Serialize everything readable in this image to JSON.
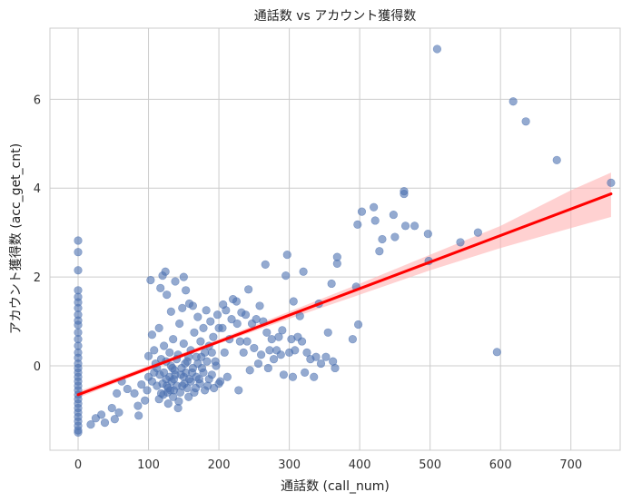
{
  "chart_data": {
    "type": "scatter",
    "title": "通話数 vs アカウント獲得数",
    "xlabel": "通話数 (call_num)",
    "ylabel": "アカウント獲得数 (acc_get_cnt)",
    "xlim": [
      -40,
      770
    ],
    "ylim": [
      -1.9,
      7.6
    ],
    "xticks": [
      0,
      100,
      200,
      300,
      400,
      500,
      600,
      700
    ],
    "yticks": [
      0,
      2,
      4,
      6
    ],
    "xtick_labels": [
      "0",
      "100",
      "200",
      "300",
      "400",
      "500",
      "600",
      "700"
    ],
    "ytick_labels": [
      "0",
      "2",
      "4",
      "6"
    ],
    "grid": true,
    "colors": {
      "points": "#4c72b0",
      "regression_line": "#ff0000",
      "confidence_band": "#ffb3b3",
      "grid": "#cccccc"
    },
    "regression": {
      "line": [
        [
          0,
          -0.65
        ],
        [
          757,
          3.87
        ]
      ],
      "ci": [
        {
          "x": 0,
          "lo": -0.72,
          "hi": -0.58
        },
        {
          "x": 100,
          "lo": -0.1,
          "hi": 0.0
        },
        {
          "x": 200,
          "lo": 0.5,
          "hi": 0.6
        },
        {
          "x": 300,
          "lo": 1.06,
          "hi": 1.22
        },
        {
          "x": 400,
          "lo": 1.6,
          "hi": 1.85
        },
        {
          "x": 500,
          "lo": 2.15,
          "hi": 2.5
        },
        {
          "x": 600,
          "lo": 2.65,
          "hi": 3.15
        },
        {
          "x": 700,
          "lo": 3.1,
          "hi": 3.95
        },
        {
          "x": 757,
          "lo": 3.35,
          "hi": 4.35
        }
      ]
    },
    "points": [
      {
        "x": 0,
        "y": 2.82
      },
      {
        "x": 0,
        "y": 2.56
      },
      {
        "x": 0,
        "y": 2.15
      },
      {
        "x": 0,
        "y": 1.7
      },
      {
        "x": 0,
        "y": 1.55
      },
      {
        "x": 0,
        "y": 1.43
      },
      {
        "x": 0,
        "y": 1.3
      },
      {
        "x": 0,
        "y": 1.15
      },
      {
        "x": 0,
        "y": 1.02
      },
      {
        "x": 0,
        "y": 0.92
      },
      {
        "x": 0,
        "y": 0.75
      },
      {
        "x": 0,
        "y": 0.6
      },
      {
        "x": 0,
        "y": 0.45
      },
      {
        "x": 0,
        "y": 0.3
      },
      {
        "x": 0,
        "y": 0.18
      },
      {
        "x": 0,
        "y": 0.05
      },
      {
        "x": 0,
        "y": -0.05
      },
      {
        "x": 0,
        "y": -0.15
      },
      {
        "x": 0,
        "y": -0.25
      },
      {
        "x": 0,
        "y": -0.35
      },
      {
        "x": 0,
        "y": -0.45
      },
      {
        "x": 0,
        "y": -0.55
      },
      {
        "x": 0,
        "y": -0.65
      },
      {
        "x": 0,
        "y": -0.75
      },
      {
        "x": 0,
        "y": -0.85
      },
      {
        "x": 0,
        "y": -0.95
      },
      {
        "x": 0,
        "y": -1.05
      },
      {
        "x": 0,
        "y": -1.15
      },
      {
        "x": 0,
        "y": -1.25
      },
      {
        "x": 0,
        "y": -1.35
      },
      {
        "x": 0,
        "y": -1.45
      },
      {
        "x": 0,
        "y": -1.5
      },
      {
        "x": 18,
        "y": -1.32
      },
      {
        "x": 25,
        "y": -1.18
      },
      {
        "x": 33,
        "y": -1.1
      },
      {
        "x": 38,
        "y": -1.28
      },
      {
        "x": 48,
        "y": -0.95
      },
      {
        "x": 52,
        "y": -1.2
      },
      {
        "x": 58,
        "y": -1.05
      },
      {
        "x": 55,
        "y": -0.62
      },
      {
        "x": 62,
        "y": -0.35
      },
      {
        "x": 70,
        "y": -0.52
      },
      {
        "x": 80,
        "y": -0.62
      },
      {
        "x": 85,
        "y": -0.9
      },
      {
        "x": 86,
        "y": -1.12
      },
      {
        "x": 90,
        "y": -0.42
      },
      {
        "x": 95,
        "y": -0.78
      },
      {
        "x": 98,
        "y": -0.55
      },
      {
        "x": 100,
        "y": 0.22
      },
      {
        "x": 100,
        "y": -0.25
      },
      {
        "x": 103,
        "y": 1.93
      },
      {
        "x": 105,
        "y": 0.7
      },
      {
        "x": 108,
        "y": -0.15
      },
      {
        "x": 110,
        "y": 0.05
      },
      {
        "x": 112,
        "y": -0.45
      },
      {
        "x": 115,
        "y": 0.85
      },
      {
        "x": 117,
        "y": 1.75
      },
      {
        "x": 118,
        "y": -0.62
      },
      {
        "x": 120,
        "y": 2.03
      },
      {
        "x": 122,
        "y": 0.45
      },
      {
        "x": 124,
        "y": 2.12
      },
      {
        "x": 125,
        "y": -0.3
      },
      {
        "x": 126,
        "y": 1.6
      },
      {
        "x": 128,
        "y": -0.85
      },
      {
        "x": 130,
        "y": 0.3
      },
      {
        "x": 132,
        "y": 1.22
      },
      {
        "x": 134,
        "y": -0.05
      },
      {
        "x": 135,
        "y": 0.6
      },
      {
        "x": 136,
        "y": -0.55
      },
      {
        "x": 138,
        "y": 1.9
      },
      {
        "x": 140,
        "y": 0.15
      },
      {
        "x": 142,
        "y": -0.95
      },
      {
        "x": 144,
        "y": 0.95
      },
      {
        "x": 146,
        "y": -0.2
      },
      {
        "x": 148,
        "y": 1.3
      },
      {
        "x": 150,
        "y": 2.0
      },
      {
        "x": 150,
        "y": 0.5
      },
      {
        "x": 151,
        "y": -0.4
      },
      {
        "x": 153,
        "y": 1.7
      },
      {
        "x": 155,
        "y": 0.1
      },
      {
        "x": 157,
        "y": -0.7
      },
      {
        "x": 158,
        "y": 1.4
      },
      {
        "x": 160,
        "y": 0.35
      },
      {
        "x": 162,
        "y": -0.15
      },
      {
        "x": 163,
        "y": 1.35
      },
      {
        "x": 165,
        "y": 0.75
      },
      {
        "x": 167,
        "y": -0.5
      },
      {
        "x": 168,
        "y": 0.2
      },
      {
        "x": 170,
        "y": 1.1
      },
      {
        "x": 172,
        "y": -0.3
      },
      {
        "x": 174,
        "y": 0.55
      },
      {
        "x": 176,
        "y": -0.05
      },
      {
        "x": 178,
        "y": 0.85
      },
      {
        "x": 180,
        "y": 0.3
      },
      {
        "x": 182,
        "y": 1.25
      },
      {
        "x": 184,
        "y": -0.45
      },
      {
        "x": 186,
        "y": 0.45
      },
      {
        "x": 188,
        "y": 1.0
      },
      {
        "x": 190,
        "y": -0.2
      },
      {
        "x": 192,
        "y": 0.65
      },
      {
        "x": 195,
        "y": 0.1
      },
      {
        "x": 198,
        "y": 1.15
      },
      {
        "x": 200,
        "y": 0.85
      },
      {
        "x": 202,
        "y": -0.35
      },
      {
        "x": 205,
        "y": 0.85
      },
      {
        "x": 206,
        "y": 1.38
      },
      {
        "x": 208,
        "y": 0.3
      },
      {
        "x": 210,
        "y": 1.25
      },
      {
        "x": 212,
        "y": -0.25
      },
      {
        "x": 215,
        "y": 0.6
      },
      {
        "x": 218,
        "y": 1.05
      },
      {
        "x": 220,
        "y": 1.5
      },
      {
        "x": 225,
        "y": 1.45
      },
      {
        "x": 226,
        "y": 0.95
      },
      {
        "x": 228,
        "y": -0.55
      },
      {
        "x": 230,
        "y": 0.55
      },
      {
        "x": 232,
        "y": 1.2
      },
      {
        "x": 235,
        "y": 0.3
      },
      {
        "x": 238,
        "y": 1.15
      },
      {
        "x": 240,
        "y": 0.55
      },
      {
        "x": 242,
        "y": 1.72
      },
      {
        "x": 244,
        "y": -0.1
      },
      {
        "x": 247,
        "y": 0.95
      },
      {
        "x": 250,
        "y": 0.4
      },
      {
        "x": 253,
        "y": 1.05
      },
      {
        "x": 256,
        "y": 0.05
      },
      {
        "x": 258,
        "y": 1.35
      },
      {
        "x": 260,
        "y": 0.25
      },
      {
        "x": 263,
        "y": 1.0
      },
      {
        "x": 266,
        "y": 2.28
      },
      {
        "x": 268,
        "y": 0.75
      },
      {
        "x": 270,
        "y": -0.05
      },
      {
        "x": 272,
        "y": 0.35
      },
      {
        "x": 275,
        "y": 0.6
      },
      {
        "x": 278,
        "y": 0.15
      },
      {
        "x": 282,
        "y": 0.35
      },
      {
        "x": 285,
        "y": 0.65
      },
      {
        "x": 288,
        "y": 0.25
      },
      {
        "x": 290,
        "y": 0.8
      },
      {
        "x": 292,
        "y": -0.2
      },
      {
        "x": 295,
        "y": 2.03
      },
      {
        "x": 297,
        "y": 2.5
      },
      {
        "x": 300,
        "y": 0.3
      },
      {
        "x": 303,
        "y": 0.6
      },
      {
        "x": 305,
        "y": -0.25
      },
      {
        "x": 306,
        "y": 1.45
      },
      {
        "x": 308,
        "y": 0.35
      },
      {
        "x": 312,
        "y": 0.65
      },
      {
        "x": 315,
        "y": 1.12
      },
      {
        "x": 318,
        "y": 0.55
      },
      {
        "x": 320,
        "y": 2.12
      },
      {
        "x": 322,
        "y": -0.15
      },
      {
        "x": 325,
        "y": 0.3
      },
      {
        "x": 330,
        "y": 0.15
      },
      {
        "x": 335,
        "y": -0.25
      },
      {
        "x": 338,
        "y": 0.2
      },
      {
        "x": 342,
        "y": 1.4
      },
      {
        "x": 345,
        "y": 0.05
      },
      {
        "x": 352,
        "y": 0.2
      },
      {
        "x": 355,
        "y": 0.75
      },
      {
        "x": 360,
        "y": 1.85
      },
      {
        "x": 362,
        "y": 0.1
      },
      {
        "x": 368,
        "y": 2.3
      },
      {
        "x": 368,
        "y": 2.45
      },
      {
        "x": 365,
        "y": -0.05
      },
      {
        "x": 390,
        "y": 0.6
      },
      {
        "x": 395,
        "y": 1.78
      },
      {
        "x": 397,
        "y": 3.18
      },
      {
        "x": 398,
        "y": 0.93
      },
      {
        "x": 403,
        "y": 3.47
      },
      {
        "x": 420,
        "y": 3.57
      },
      {
        "x": 422,
        "y": 3.27
      },
      {
        "x": 428,
        "y": 2.58
      },
      {
        "x": 432,
        "y": 2.85
      },
      {
        "x": 448,
        "y": 3.4
      },
      {
        "x": 450,
        "y": 2.9
      },
      {
        "x": 463,
        "y": 3.93
      },
      {
        "x": 463,
        "y": 3.87
      },
      {
        "x": 465,
        "y": 3.15
      },
      {
        "x": 478,
        "y": 3.15
      },
      {
        "x": 497,
        "y": 2.97
      },
      {
        "x": 498,
        "y": 2.36
      },
      {
        "x": 510,
        "y": 7.13
      },
      {
        "x": 543,
        "y": 2.78
      },
      {
        "x": 568,
        "y": 3.0
      },
      {
        "x": 595,
        "y": 0.31
      },
      {
        "x": 618,
        "y": 5.95
      },
      {
        "x": 636,
        "y": 5.5
      },
      {
        "x": 680,
        "y": 4.63
      },
      {
        "x": 757,
        "y": 4.12
      },
      {
        "x": 105,
        "y": -0.35
      },
      {
        "x": 108,
        "y": 0.35
      },
      {
        "x": 112,
        "y": -0.05
      },
      {
        "x": 115,
        "y": -0.75
      },
      {
        "x": 118,
        "y": 0.15
      },
      {
        "x": 120,
        "y": -0.4
      },
      {
        "x": 122,
        "y": -0.15
      },
      {
        "x": 125,
        "y": 0.1
      },
      {
        "x": 127,
        "y": -0.6
      },
      {
        "x": 130,
        "y": -0.25
      },
      {
        "x": 132,
        "y": 0.0
      },
      {
        "x": 135,
        "y": -0.7
      },
      {
        "x": 137,
        "y": -0.1
      },
      {
        "x": 140,
        "y": -0.45
      },
      {
        "x": 142,
        "y": 0.25
      },
      {
        "x": 145,
        "y": -0.6
      },
      {
        "x": 147,
        "y": -0.05
      },
      {
        "x": 150,
        "y": -0.25
      },
      {
        "x": 152,
        "y": 0.05
      },
      {
        "x": 155,
        "y": -0.5
      },
      {
        "x": 157,
        "y": 0.2
      },
      {
        "x": 160,
        "y": -0.35
      },
      {
        "x": 163,
        "y": -0.05
      },
      {
        "x": 165,
        "y": -0.6
      },
      {
        "x": 168,
        "y": -0.25
      },
      {
        "x": 170,
        "y": 0.05
      },
      {
        "x": 173,
        "y": -0.4
      },
      {
        "x": 175,
        "y": 0.2
      },
      {
        "x": 178,
        "y": -0.15
      },
      {
        "x": 180,
        "y": -0.55
      },
      {
        "x": 183,
        "y": 0.1
      },
      {
        "x": 186,
        "y": -0.3
      },
      {
        "x": 190,
        "y": 0.3
      },
      {
        "x": 193,
        "y": -0.5
      },
      {
        "x": 196,
        "y": 0.0
      },
      {
        "x": 200,
        "y": -0.4
      },
      {
        "x": 128,
        "y": -0.5
      },
      {
        "x": 133,
        "y": -0.35
      },
      {
        "x": 138,
        "y": -0.2
      },
      {
        "x": 143,
        "y": -0.8
      },
      {
        "x": 148,
        "y": -0.45
      },
      {
        "x": 153,
        "y": -0.15
      },
      {
        "x": 158,
        "y": -0.3
      },
      {
        "x": 116,
        "y": -0.2
      },
      {
        "x": 121,
        "y": -0.65
      },
      {
        "x": 126,
        "y": -0.45
      },
      {
        "x": 131,
        "y": -0.55
      },
      {
        "x": 136,
        "y": -0.3
      }
    ]
  }
}
